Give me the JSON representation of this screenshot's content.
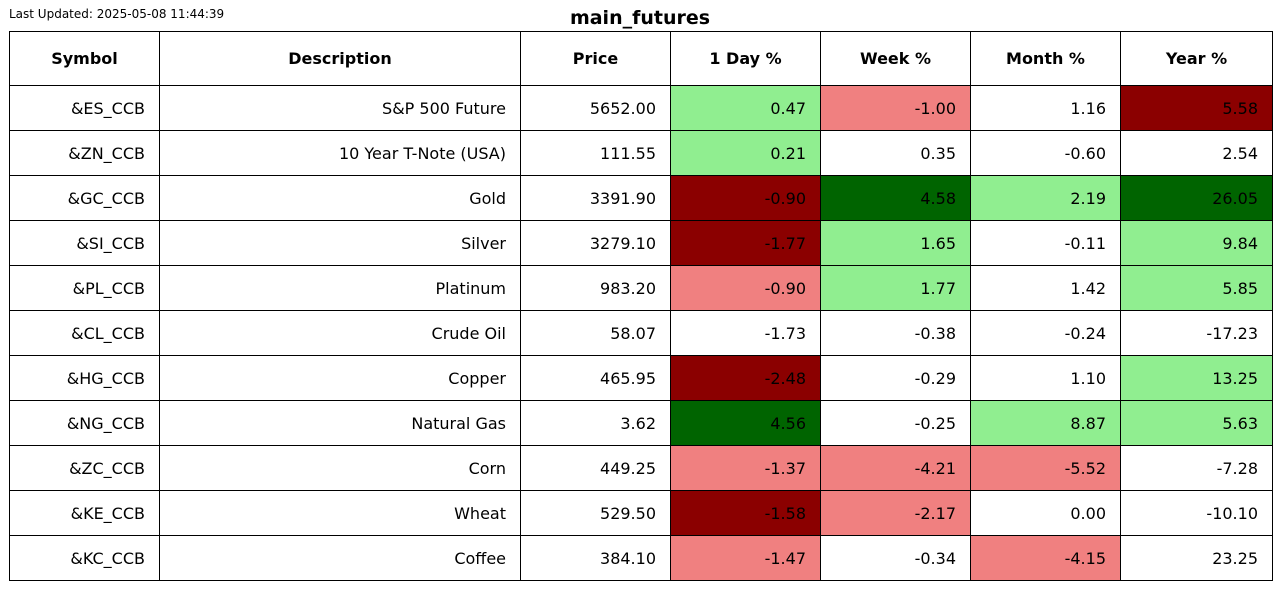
{
  "last_updated": "Last Updated: 2025-05-08 11:44:39",
  "title": "main_futures",
  "columns": [
    "Symbol",
    "Description",
    "Price",
    "1 Day %",
    "Week %",
    "Month %",
    "Year %"
  ],
  "colors": {
    "dark_red": "#8b0000",
    "light_red": "#f08080",
    "dark_green": "#006400",
    "light_green": "#90ee90",
    "neutral": "#ffffff"
  },
  "rows": [
    {
      "symbol": "&ES_CCB",
      "description": "S&P 500 Future",
      "price": "5652.00",
      "day": "0.47",
      "week": "-1.00",
      "month": "1.16",
      "year": "5.58",
      "shading": [
        "light_green",
        "light_red",
        "neutral",
        "dark_red"
      ]
    },
    {
      "symbol": "&ZN_CCB",
      "description": "10 Year T-Note (USA)",
      "price": "111.55",
      "day": "0.21",
      "week": "0.35",
      "month": "-0.60",
      "year": "2.54",
      "shading": [
        "light_green",
        "neutral",
        "neutral",
        "neutral"
      ]
    },
    {
      "symbol": "&GC_CCB",
      "description": "Gold",
      "price": "3391.90",
      "day": "-0.90",
      "week": "4.58",
      "month": "2.19",
      "year": "26.05",
      "shading": [
        "dark_red",
        "dark_green",
        "light_green",
        "dark_green"
      ]
    },
    {
      "symbol": "&SI_CCB",
      "description": "Silver",
      "price": "3279.10",
      "day": "-1.77",
      "week": "1.65",
      "month": "-0.11",
      "year": "9.84",
      "shading": [
        "dark_red",
        "light_green",
        "neutral",
        "light_green"
      ]
    },
    {
      "symbol": "&PL_CCB",
      "description": "Platinum",
      "price": "983.20",
      "day": "-0.90",
      "week": "1.77",
      "month": "1.42",
      "year": "5.85",
      "shading": [
        "light_red",
        "light_green",
        "neutral",
        "light_green"
      ]
    },
    {
      "symbol": "&CL_CCB",
      "description": "Crude Oil",
      "price": "58.07",
      "day": "-1.73",
      "week": "-0.38",
      "month": "-0.24",
      "year": "-17.23",
      "shading": [
        "neutral",
        "neutral",
        "neutral",
        "neutral"
      ]
    },
    {
      "symbol": "&HG_CCB",
      "description": "Copper",
      "price": "465.95",
      "day": "-2.48",
      "week": "-0.29",
      "month": "1.10",
      "year": "13.25",
      "shading": [
        "dark_red",
        "neutral",
        "neutral",
        "light_green"
      ]
    },
    {
      "symbol": "&NG_CCB",
      "description": "Natural Gas",
      "price": "3.62",
      "day": "4.56",
      "week": "-0.25",
      "month": "8.87",
      "year": "5.63",
      "shading": [
        "dark_green",
        "neutral",
        "light_green",
        "light_green"
      ]
    },
    {
      "symbol": "&ZC_CCB",
      "description": "Corn",
      "price": "449.25",
      "day": "-1.37",
      "week": "-4.21",
      "month": "-5.52",
      "year": "-7.28",
      "shading": [
        "light_red",
        "light_red",
        "light_red",
        "neutral"
      ]
    },
    {
      "symbol": "&KE_CCB",
      "description": "Wheat",
      "price": "529.50",
      "day": "-1.58",
      "week": "-2.17",
      "month": "0.00",
      "year": "-10.10",
      "shading": [
        "dark_red",
        "light_red",
        "neutral",
        "neutral"
      ]
    },
    {
      "symbol": "&KC_CCB",
      "description": "Coffee",
      "price": "384.10",
      "day": "-1.47",
      "week": "-0.34",
      "month": "-4.15",
      "year": "23.25",
      "shading": [
        "light_red",
        "neutral",
        "light_red",
        "neutral"
      ]
    }
  ]
}
